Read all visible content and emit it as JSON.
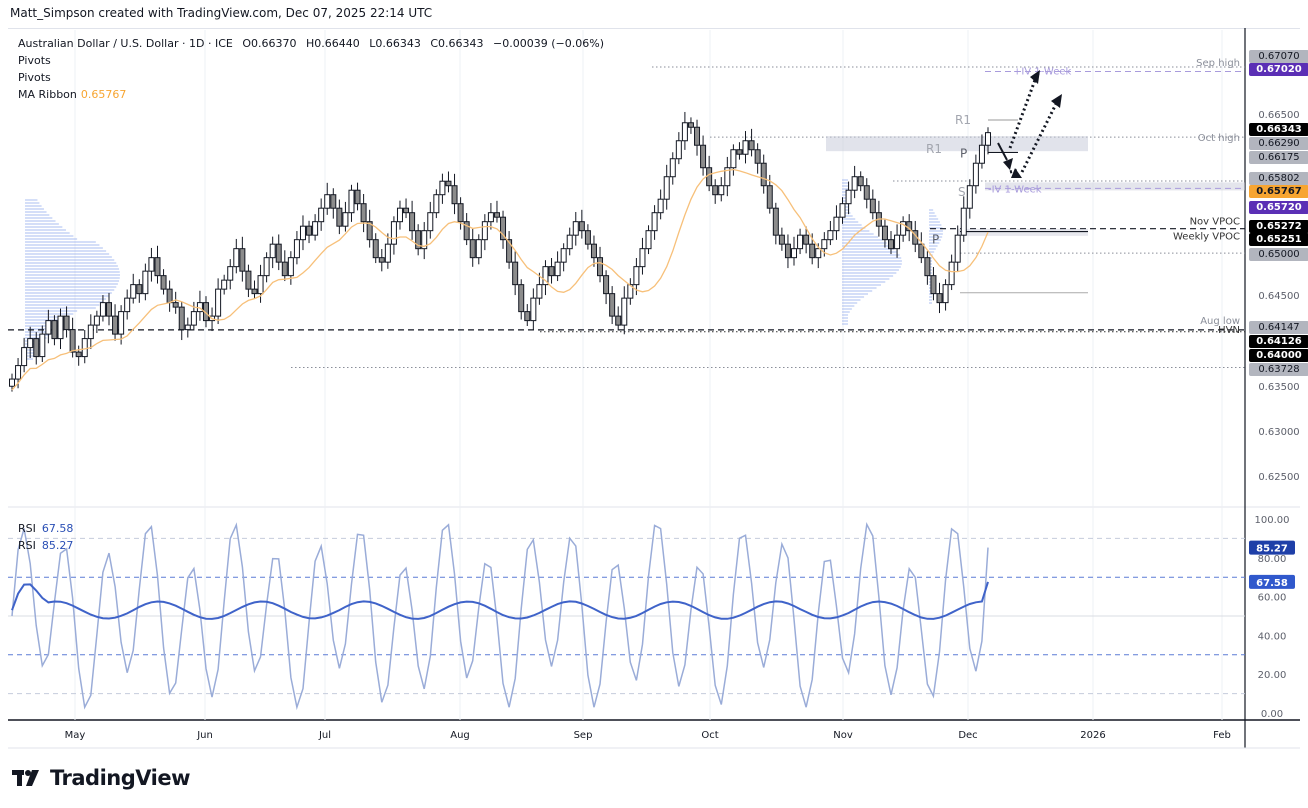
{
  "credit": "Matt_Simpson created with TradingView.com, Dec 07, 2025 22:14 UTC",
  "legend": {
    "symbol": "Australian Dollar / U.S. Dollar · 1D · ICE",
    "open": "O0.66370",
    "high": "H0.66440",
    "low": "L0.66343",
    "close": "C0.66343",
    "change": "−0.00039 (−0.06%)",
    "indicator1": "Pivots",
    "indicator2": "Pivots",
    "ma_label": "MA Ribbon",
    "ma_value": "0.65767"
  },
  "rsi_legend": {
    "label1": "RSI",
    "value1": "67.58",
    "label2": "RSI",
    "value2": "85.27"
  },
  "logo": {
    "text": "TradingView"
  },
  "colors": {
    "up_candle": "#ffffff",
    "down_candle": "#8c8c8c",
    "ma": "#f7c07a",
    "rsi_slow": "#3f63c9",
    "rsi_fast": "#9aacd8",
    "volume_profile": "#9db4f0",
    "purple_label": "#5b2fb5",
    "orange_label": "#f7a531",
    "black_label": "#000000",
    "gray_label": "#b2b5be"
  },
  "chart_data": [
    {
      "type": "candlestick",
      "title": "Australian Dollar / U.S. Dollar · 1D · ICE",
      "ylabel": "Price",
      "ylim": [
        0.62,
        0.672
      ],
      "x_ticks": [
        "May",
        "Jun",
        "Jul",
        "Aug",
        "Sep",
        "Oct",
        "Nov",
        "Dec",
        "2026",
        "Feb"
      ],
      "y_ticks": [
        "0.67070",
        "0.67020",
        "0.66500",
        "0.66343",
        "0.66290",
        "0.66175",
        "0.65802",
        "0.65767",
        "0.65720",
        "0.65272",
        "0.65251",
        "0.65000",
        "0.64500",
        "0.64147",
        "0.64126",
        "0.64000",
        "0.63728",
        "0.63500",
        "0.63000",
        "0.62500"
      ],
      "price_labels": [
        {
          "value": "0.67070",
          "style": "gray"
        },
        {
          "value": "0.67020",
          "style": "purple"
        },
        {
          "value": "0.66500",
          "style": "plain"
        },
        {
          "value": "0.66343",
          "style": "black"
        },
        {
          "value": "0.66290",
          "style": "gray"
        },
        {
          "value": "0.66175",
          "style": "gray"
        },
        {
          "value": "0.65802",
          "style": "gray"
        },
        {
          "value": "0.65767",
          "style": "orange"
        },
        {
          "value": "0.65720",
          "style": "purple"
        },
        {
          "value": "0.65272",
          "style": "black"
        },
        {
          "value": "0.65251",
          "style": "black"
        },
        {
          "value": "0.65000",
          "style": "gray"
        },
        {
          "value": "0.64500",
          "style": "plain"
        },
        {
          "value": "0.64147",
          "style": "gray"
        },
        {
          "value": "0.64126",
          "style": "black"
        },
        {
          "value": "0.64000",
          "style": "black"
        },
        {
          "value": "0.63728",
          "style": "gray"
        },
        {
          "value": "0.63500",
          "style": "plain"
        },
        {
          "value": "0.63000",
          "style": "plain"
        },
        {
          "value": "0.62500",
          "style": "plain"
        }
      ],
      "annotations": [
        {
          "text": "Sep high",
          "price": 0.6707
        },
        {
          "text": "Oct high",
          "price": 0.6629
        },
        {
          "text": "Nov VPOC",
          "price": 0.65272
        },
        {
          "text": "Weekly VPOC",
          "price": 0.65251
        },
        {
          "text": "Aug low",
          "price": 0.64147
        },
        {
          "text": "HVN",
          "price": 0.64147
        },
        {
          "text": "+IV 1-Week",
          "price": 0.6702
        },
        {
          "text": "-IV 1-Week",
          "price": 0.6572
        },
        {
          "text": "R1",
          "price": 0.6648
        },
        {
          "text": "R1",
          "price": 0.6617
        },
        {
          "text": "P",
          "price": 0.6613
        },
        {
          "text": "S1",
          "price": 0.657
        },
        {
          "text": "P",
          "price": 0.6524
        }
      ],
      "ohlc_last": {
        "open": 0.6637,
        "high": 0.6644,
        "low": 0.66343,
        "close": 0.66343
      },
      "ma_ribbon_last": 0.65767,
      "series_close": [
        0.636,
        0.6375,
        0.6395,
        0.6405,
        0.6385,
        0.641,
        0.6425,
        0.6405,
        0.643,
        0.6415,
        0.639,
        0.6385,
        0.6405,
        0.642,
        0.643,
        0.6445,
        0.643,
        0.641,
        0.6435,
        0.645,
        0.6465,
        0.6455,
        0.648,
        0.6495,
        0.6475,
        0.646,
        0.6445,
        0.644,
        0.6415,
        0.642,
        0.6435,
        0.6445,
        0.6425,
        0.643,
        0.646,
        0.647,
        0.6485,
        0.6505,
        0.648,
        0.646,
        0.6455,
        0.6475,
        0.6495,
        0.651,
        0.649,
        0.6475,
        0.6495,
        0.6515,
        0.653,
        0.652,
        0.6535,
        0.655,
        0.6565,
        0.655,
        0.653,
        0.6545,
        0.657,
        0.6555,
        0.6535,
        0.6515,
        0.6495,
        0.649,
        0.651,
        0.6535,
        0.655,
        0.6545,
        0.6525,
        0.6505,
        0.6525,
        0.6545,
        0.6565,
        0.658,
        0.6575,
        0.6555,
        0.6535,
        0.6515,
        0.6495,
        0.6515,
        0.6535,
        0.6545,
        0.654,
        0.6515,
        0.649,
        0.6465,
        0.6435,
        0.6425,
        0.645,
        0.6465,
        0.6485,
        0.6475,
        0.649,
        0.6505,
        0.652,
        0.6535,
        0.6525,
        0.651,
        0.6495,
        0.6475,
        0.6455,
        0.643,
        0.642,
        0.645,
        0.6465,
        0.6485,
        0.6505,
        0.6525,
        0.6545,
        0.656,
        0.6585,
        0.6605,
        0.6625,
        0.6645,
        0.664,
        0.662,
        0.6595,
        0.6575,
        0.6565,
        0.6575,
        0.6595,
        0.6615,
        0.661,
        0.6625,
        0.6615,
        0.66,
        0.6575,
        0.655,
        0.652,
        0.651,
        0.6495,
        0.6505,
        0.652,
        0.651,
        0.6495,
        0.6505,
        0.6515,
        0.6525,
        0.654,
        0.6555,
        0.657,
        0.6585,
        0.6575,
        0.656,
        0.6545,
        0.653,
        0.6515,
        0.6505,
        0.652,
        0.6535,
        0.6525,
        0.651,
        0.6495,
        0.6475,
        0.6455,
        0.6445,
        0.6465,
        0.649,
        0.652,
        0.655,
        0.6575,
        0.66,
        0.662,
        0.6634
      ]
    },
    {
      "type": "line",
      "title": "RSI",
      "ylim": [
        0,
        100
      ],
      "y_ticks": [
        "100.00",
        "80.00",
        "60.00",
        "40.00",
        "20.00",
        "0.00"
      ],
      "bands": [
        90,
        70,
        30,
        10
      ],
      "series": [
        {
          "name": "RSI (slow)",
          "last": 67.58
        },
        {
          "name": "RSI (fast)",
          "last": 85.27
        }
      ]
    }
  ]
}
